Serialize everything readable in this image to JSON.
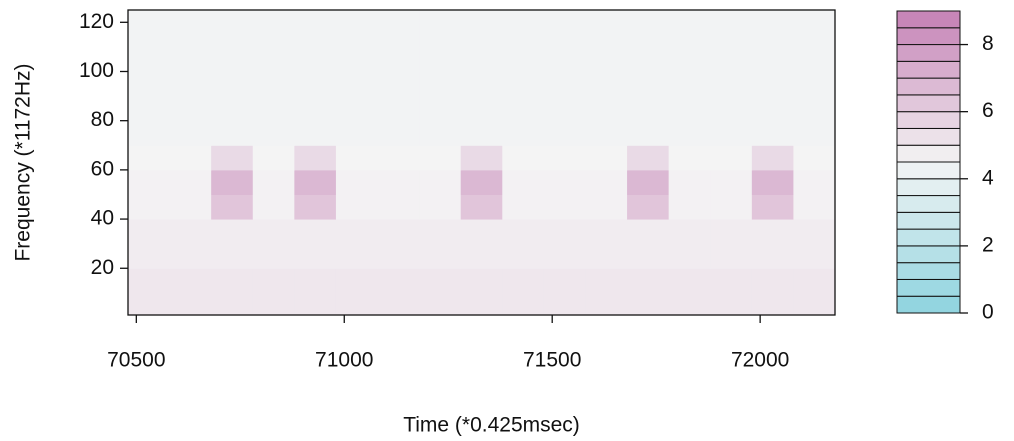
{
  "chart_data": {
    "type": "heatmap",
    "xlabel": "Time (*0.425msec)",
    "ylabel": "Frequency (*1172Hz)",
    "xlim": [
      70480,
      72180
    ],
    "ylim": [
      1,
      125
    ],
    "xticks": [
      70500,
      71000,
      71500,
      72000
    ],
    "yticks": [
      20,
      40,
      60,
      80,
      100,
      120
    ],
    "x_edges": [
      70480,
      70580,
      70680,
      70780,
      70880,
      70980,
      71080,
      71180,
      71280,
      71380,
      71480,
      71580,
      71680,
      71780,
      71880,
      71980,
      72080,
      72180
    ],
    "y_edges": [
      1,
      10,
      20,
      30,
      40,
      50,
      60,
      70,
      80,
      90,
      100,
      110,
      120,
      125
    ],
    "z": [
      [
        5.0,
        5.0,
        5.0,
        5.0,
        5.0,
        5.0,
        5.0,
        5.0,
        5.0,
        5.0,
        5.0,
        5.0,
        5.0,
        5.0,
        5.0,
        5.0,
        5.0
      ],
      [
        5.0,
        5.0,
        5.0,
        5.0,
        5.0,
        5.0,
        5.0,
        5.0,
        5.0,
        5.0,
        5.0,
        5.0,
        5.0,
        5.0,
        5.0,
        5.0,
        5.0
      ],
      [
        4.8,
        4.8,
        4.8,
        4.8,
        4.8,
        4.8,
        4.8,
        4.8,
        4.8,
        4.8,
        4.8,
        4.8,
        4.8,
        4.8,
        4.8,
        4.8,
        4.8
      ],
      [
        4.8,
        4.8,
        4.8,
        4.8,
        4.8,
        4.8,
        4.8,
        4.8,
        4.8,
        4.8,
        4.8,
        4.8,
        4.8,
        4.8,
        4.8,
        4.8,
        4.8
      ],
      [
        4.6,
        4.6,
        6.3,
        4.6,
        6.3,
        4.6,
        4.6,
        4.6,
        6.3,
        4.6,
        4.6,
        4.6,
        6.3,
        4.6,
        4.6,
        6.3,
        4.6
      ],
      [
        4.6,
        4.6,
        6.8,
        4.6,
        6.8,
        4.6,
        4.6,
        4.6,
        6.8,
        4.6,
        4.6,
        4.6,
        6.8,
        4.6,
        4.6,
        6.8,
        4.6
      ],
      [
        4.5,
        4.5,
        5.5,
        4.5,
        5.5,
        4.5,
        4.5,
        4.5,
        5.5,
        4.5,
        4.5,
        4.5,
        5.5,
        4.5,
        4.5,
        5.5,
        4.5
      ],
      [
        4.4,
        4.4,
        4.4,
        4.4,
        4.4,
        4.4,
        4.4,
        4.4,
        4.4,
        4.4,
        4.4,
        4.4,
        4.4,
        4.4,
        4.4,
        4.4,
        4.4
      ],
      [
        4.4,
        4.4,
        4.4,
        4.4,
        4.4,
        4.4,
        4.4,
        4.4,
        4.4,
        4.4,
        4.4,
        4.4,
        4.4,
        4.4,
        4.4,
        4.4,
        4.4
      ],
      [
        4.4,
        4.4,
        4.4,
        4.4,
        4.4,
        4.4,
        4.4,
        4.4,
        4.4,
        4.4,
        4.4,
        4.4,
        4.4,
        4.4,
        4.4,
        4.4,
        4.4
      ],
      [
        4.4,
        4.4,
        4.4,
        4.4,
        4.4,
        4.4,
        4.4,
        4.4,
        4.4,
        4.4,
        4.4,
        4.4,
        4.4,
        4.4,
        4.4,
        4.4,
        4.4
      ],
      [
        4.4,
        4.4,
        4.4,
        4.4,
        4.4,
        4.4,
        4.4,
        4.4,
        4.4,
        4.4,
        4.4,
        4.4,
        4.4,
        4.4,
        4.4,
        4.4,
        4.4
      ],
      [
        4.4,
        4.4,
        4.4,
        4.4,
        4.4,
        4.4,
        4.4,
        4.4,
        4.4,
        4.4,
        4.4,
        4.4,
        4.4,
        4.4,
        4.4,
        4.4,
        4.4
      ]
    ],
    "colormap": {
      "low": "#8dd3df",
      "mid": "#f4f4f4",
      "high": "#c47fb4"
    },
    "colorbar": {
      "levels": [
        0,
        0.5,
        1,
        1.5,
        2,
        2.5,
        3,
        3.5,
        4,
        4.5,
        5,
        5.5,
        6,
        6.5,
        7,
        7.5,
        8,
        8.5,
        9
      ],
      "ticks": [
        0,
        2,
        4,
        6,
        8
      ]
    }
  }
}
